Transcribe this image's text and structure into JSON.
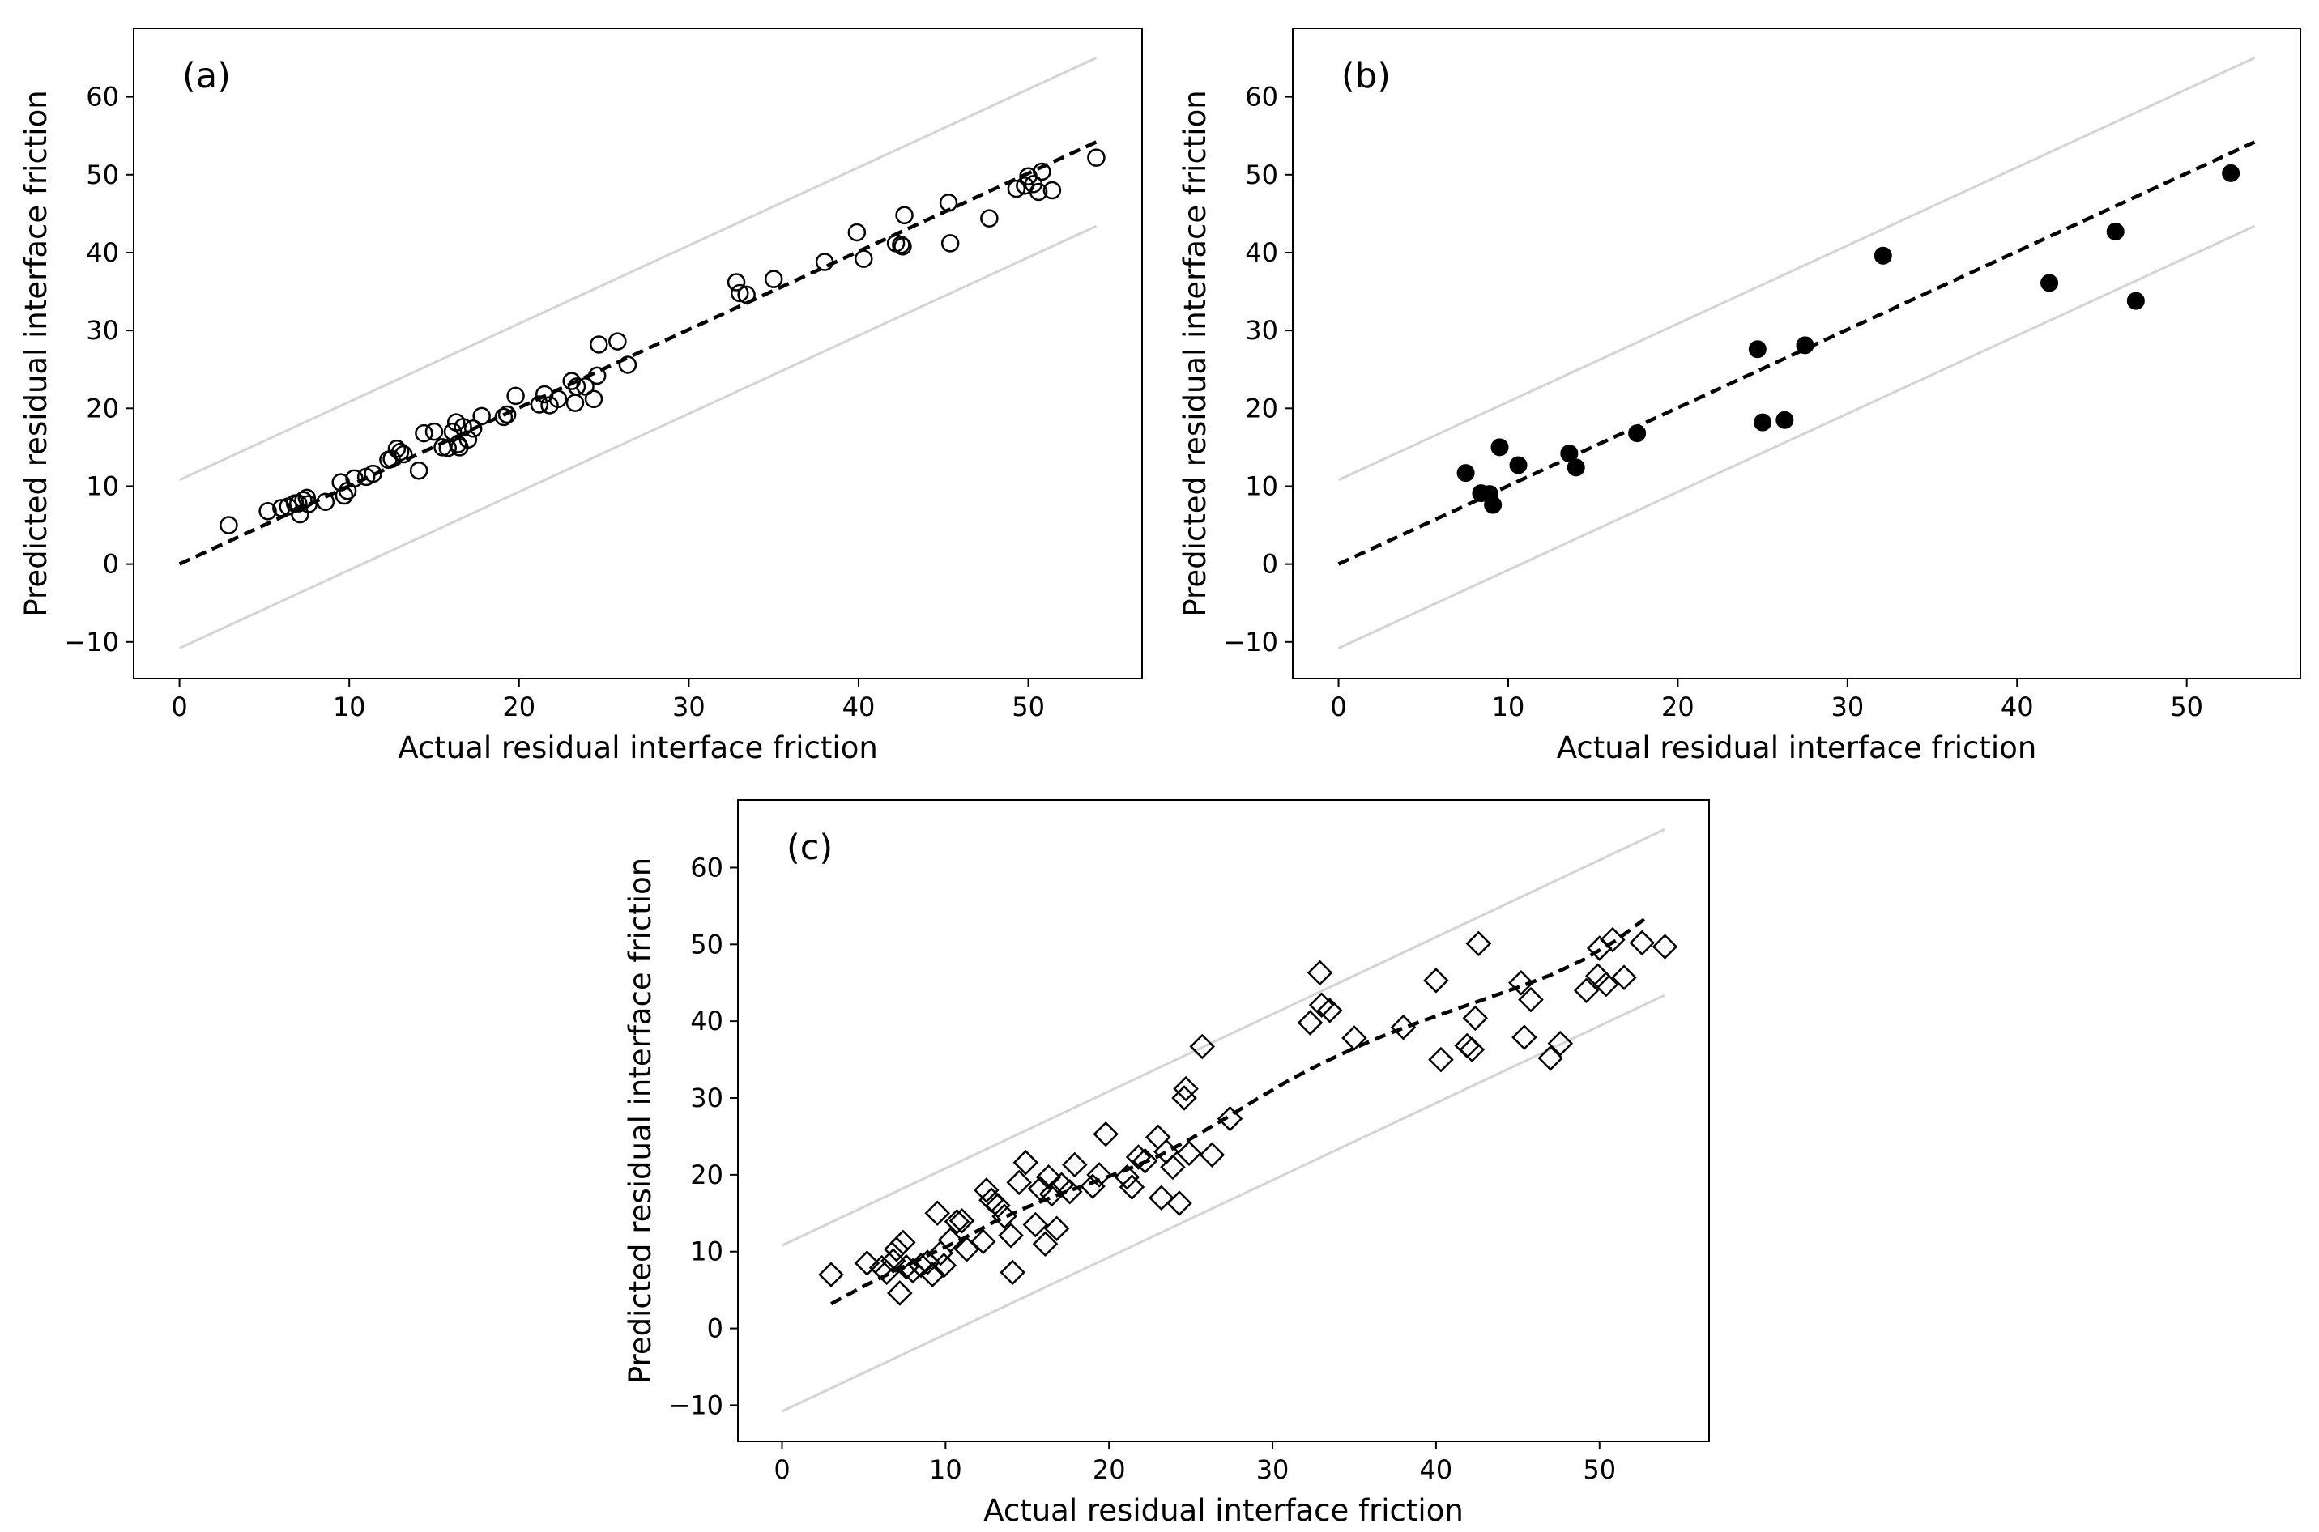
{
  "chart_data": [
    {
      "type": "scatter",
      "panel_label": "(a)",
      "marker": "open-circle",
      "xlabel": "Actual residual interface friction",
      "ylabel": "Predicted residual interface friction",
      "xlim": [
        -2.7,
        56.7
      ],
      "ylim": [
        -14.7,
        68.8
      ],
      "xticks": [
        0,
        10,
        20,
        30,
        40,
        50
      ],
      "yticks": [
        -10,
        0,
        10,
        20,
        30,
        40,
        50,
        60
      ],
      "grid": false,
      "fit_line": {
        "style": "dashed",
        "x": [
          0,
          54
        ],
        "y": [
          0,
          54.2
        ]
      },
      "bound_lines": [
        {
          "style": "light-gray",
          "x": [
            0,
            54
          ],
          "y": [
            10.8,
            65
          ]
        },
        {
          "style": "light-gray",
          "x": [
            0,
            54
          ],
          "y": [
            -10.8,
            43.4
          ]
        }
      ],
      "x": [
        2.9,
        5.2,
        6.0,
        6.4,
        6.8,
        7.0,
        7.1,
        7.3,
        7.5,
        7.6,
        8.6,
        9.5,
        9.7,
        9.9,
        10.3,
        11.0,
        11.4,
        12.3,
        12.5,
        12.8,
        13.0,
        13.2,
        14.1,
        14.4,
        15.0,
        15.5,
        15.8,
        16.1,
        16.3,
        16.4,
        16.5,
        16.7,
        17.0,
        17.3,
        17.8,
        19.1,
        19.3,
        19.8,
        21.2,
        21.5,
        21.8,
        22.3,
        23.1,
        23.3,
        23.4,
        23.9,
        24.4,
        24.6,
        24.7,
        25.8,
        26.4,
        32.8,
        33.0,
        33.4,
        35.0,
        38.0,
        39.9,
        40.3,
        42.2,
        42.5,
        42.6,
        42.7,
        45.3,
        45.4,
        47.7,
        49.3,
        49.8,
        50.0,
        50.3,
        50.6,
        50.8,
        51.4,
        54.0
      ],
      "y": [
        5.0,
        6.8,
        7.2,
        7.4,
        7.8,
        7.8,
        6.4,
        8.2,
        8.5,
        7.7,
        8.0,
        10.5,
        8.8,
        9.4,
        11.0,
        11.2,
        11.6,
        13.4,
        13.5,
        14.8,
        14.4,
        14.1,
        12.0,
        16.8,
        17.0,
        15.0,
        14.9,
        17.0,
        18.2,
        15.4,
        15.0,
        17.6,
        16.0,
        17.4,
        19.0,
        18.9,
        19.2,
        21.6,
        20.5,
        21.8,
        20.4,
        21.2,
        23.5,
        20.7,
        22.8,
        22.8,
        21.2,
        24.2,
        28.2,
        28.6,
        25.6,
        36.2,
        34.8,
        34.6,
        36.6,
        38.8,
        42.6,
        39.2,
        41.2,
        41.0,
        40.8,
        44.8,
        46.4,
        41.2,
        44.4,
        48.2,
        48.6,
        49.8,
        48.8,
        47.8,
        50.4,
        48.0,
        52.2
      ]
    },
    {
      "type": "scatter",
      "panel_label": "(b)",
      "marker": "filled-circle",
      "xlabel": "Actual residual interface friction",
      "ylabel": "Predicted residual interface friction",
      "xlim": [
        -2.7,
        56.7
      ],
      "ylim": [
        -14.7,
        68.8
      ],
      "xticks": [
        0,
        10,
        20,
        30,
        40,
        50
      ],
      "yticks": [
        -10,
        0,
        10,
        20,
        30,
        40,
        50,
        60
      ],
      "grid": false,
      "fit_line": {
        "style": "dashed",
        "x": [
          0,
          54
        ],
        "y": [
          0,
          54.2
        ]
      },
      "bound_lines": [
        {
          "style": "light-gray",
          "x": [
            0,
            54
          ],
          "y": [
            10.8,
            65
          ]
        },
        {
          "style": "light-gray",
          "x": [
            0,
            54
          ],
          "y": [
            -10.8,
            43.4
          ]
        }
      ],
      "x": [
        7.5,
        8.4,
        8.9,
        9.1,
        9.5,
        10.6,
        13.6,
        14.0,
        17.6,
        24.7,
        25.0,
        26.3,
        27.5,
        32.1,
        41.9,
        45.8,
        47.0,
        52.6
      ],
      "y": [
        11.7,
        9.1,
        9.0,
        7.6,
        15.0,
        12.7,
        14.2,
        12.4,
        16.8,
        27.6,
        18.2,
        18.5,
        28.1,
        39.6,
        36.1,
        42.7,
        33.8,
        50.2
      ]
    },
    {
      "type": "scatter",
      "panel_label": "(c)",
      "marker": "open-diamond",
      "xlabel": "Actual residual interface friction",
      "ylabel": "Predicted residual interface friction",
      "xlim": [
        -2.7,
        56.7
      ],
      "ylim": [
        -14.7,
        68.8
      ],
      "xticks": [
        0,
        10,
        20,
        30,
        40,
        50
      ],
      "yticks": [
        -10,
        0,
        10,
        20,
        30,
        40,
        50,
        60
      ],
      "grid": false,
      "fit_line": {
        "style": "dashed",
        "x": [
          3,
          5,
          7,
          9,
          11,
          13,
          15,
          17,
          19,
          21,
          23,
          25,
          27,
          29,
          31,
          33,
          35,
          37,
          39,
          41,
          43,
          45,
          47,
          49,
          51,
          53
        ],
        "y": [
          3.2,
          5.5,
          7.6,
          9.6,
          11.6,
          13.9,
          15.8,
          17.5,
          19.0,
          20.6,
          22.4,
          24.7,
          27.2,
          29.8,
          32.3,
          34.5,
          36.5,
          38.3,
          39.9,
          41.4,
          42.9,
          44.4,
          46.0,
          48.0,
          50.5,
          53.7
        ]
      },
      "bound_lines": [
        {
          "style": "light-gray",
          "x": [
            0,
            54
          ],
          "y": [
            10.8,
            65
          ]
        },
        {
          "style": "light-gray",
          "x": [
            0,
            54
          ],
          "y": [
            -10.8,
            43.4
          ]
        }
      ],
      "x": [
        3.0,
        5.2,
        6.1,
        6.4,
        6.8,
        7.0,
        7.2,
        7.4,
        7.6,
        8.0,
        8.5,
        8.9,
        9.2,
        9.5,
        9.7,
        9.9,
        10.3,
        10.7,
        11.0,
        11.3,
        12.3,
        12.5,
        12.8,
        13.2,
        13.6,
        14.0,
        14.1,
        14.5,
        14.9,
        15.5,
        15.8,
        16.1,
        16.3,
        16.5,
        16.8,
        17.1,
        17.6,
        17.9,
        19.0,
        19.4,
        19.8,
        21.1,
        21.4,
        21.8,
        22.2,
        23.0,
        23.2,
        23.5,
        23.9,
        24.3,
        24.6,
        24.7,
        24.9,
        25.7,
        26.3,
        27.4,
        32.3,
        32.9,
        33.0,
        33.5,
        35.0,
        38.0,
        40.0,
        40.3,
        41.9,
        42.2,
        42.4,
        42.6,
        45.2,
        45.4,
        45.8,
        47.0,
        47.6,
        49.2,
        49.9,
        50.0,
        50.4,
        50.8,
        51.5,
        52.6,
        54.0
      ],
      "y": [
        7.0,
        8.5,
        7.9,
        7.3,
        8.8,
        10.3,
        4.6,
        11.2,
        8.0,
        7.5,
        8.2,
        8.6,
        7.0,
        15.0,
        9.8,
        8.2,
        11.5,
        13.9,
        14.0,
        10.3,
        11.3,
        18.0,
        16.7,
        16.0,
        14.6,
        12.1,
        7.3,
        19.0,
        21.6,
        13.5,
        18.2,
        11.0,
        19.7,
        17.5,
        13.0,
        18.7,
        17.8,
        21.3,
        18.5,
        20.0,
        25.3,
        19.7,
        18.4,
        22.3,
        21.8,
        24.9,
        17.0,
        23.0,
        21.0,
        16.3,
        30.0,
        31.2,
        22.8,
        36.7,
        22.6,
        27.3,
        39.8,
        46.3,
        42.1,
        41.4,
        37.8,
        39.2,
        45.3,
        35.0,
        36.8,
        36.3,
        40.4,
        50.1,
        45.0,
        37.9,
        42.8,
        35.2,
        37.1,
        44.0,
        45.9,
        49.5,
        44.8,
        50.6,
        45.7,
        50.2,
        49.7
      ]
    }
  ]
}
